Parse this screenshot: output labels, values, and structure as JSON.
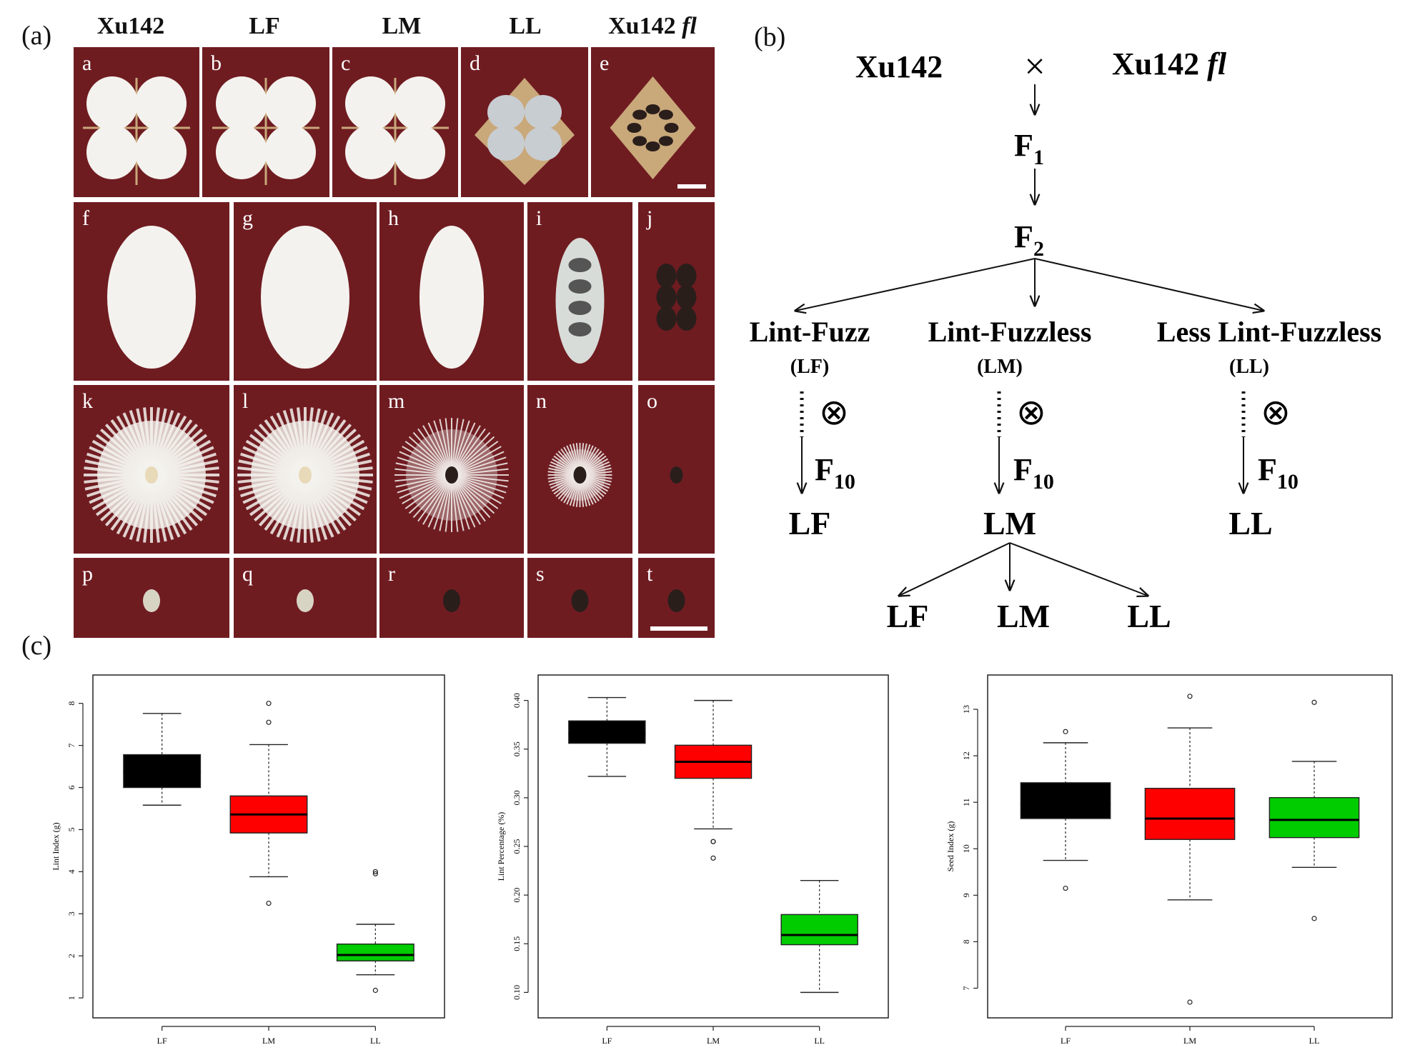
{
  "panel_a": {
    "label": "(a)",
    "col_headers": [
      "Xu142",
      "LF",
      "LM",
      "LL",
      "Xu142 fl"
    ],
    "col_headers_italic_suffix": "fl",
    "letters": [
      "a",
      "b",
      "c",
      "d",
      "e",
      "f",
      "g",
      "h",
      "i",
      "j",
      "k",
      "l",
      "m",
      "n",
      "o",
      "p",
      "q",
      "r",
      "s",
      "t"
    ],
    "colors": {
      "background": "#6f1c21",
      "fiber": "#f4f2ee",
      "seed": "#2a1e1b",
      "bract": "#c9a87a"
    }
  },
  "panel_b": {
    "label": "(b)",
    "parent_left": "Xu142",
    "cross_symbol": "×",
    "parent_right": "Xu142 ",
    "parent_right_italic": "fl",
    "f1": "F",
    "f1_sub": "1",
    "f2": "F",
    "f2_sub": "2",
    "classes": [
      {
        "name": "Lint-Fuzz",
        "abbr": "(LF)",
        "gen": "F",
        "gen_sub": "10",
        "result": "LF"
      },
      {
        "name": "Lint-Fuzzless",
        "abbr": "(LM)",
        "gen": "F",
        "gen_sub": "10",
        "result": "LM"
      },
      {
        "name": "Less Lint-Fuzzless",
        "abbr": "(LL)",
        "gen": "F",
        "gen_sub": "10",
        "result": "LL"
      }
    ],
    "self_symbol": "⊗",
    "segregation": [
      "LF",
      "LM",
      "LL"
    ]
  },
  "panel_c": {
    "label": "(c)"
  },
  "chart_data": [
    {
      "type": "box",
      "ylabel": "Lint Index (g)",
      "categories": [
        "LF",
        "LM",
        "LL"
      ],
      "ylim": [
        0.9,
        8.3
      ],
      "yticks": [
        1,
        2,
        3,
        4,
        5,
        6,
        7,
        8
      ],
      "colors": [
        "#000000",
        "#ff0000",
        "#00cc00"
      ],
      "boxes": [
        {
          "min": 5.58,
          "q1": 6.0,
          "median": 6.38,
          "q3": 6.78,
          "max": 7.76,
          "outliers": []
        },
        {
          "min": 3.88,
          "q1": 4.92,
          "median": 5.36,
          "q3": 5.8,
          "max": 7.02,
          "outliers": [
            3.25,
            7.55,
            8.0
          ]
        },
        {
          "min": 1.55,
          "q1": 1.88,
          "median": 2.02,
          "q3": 2.28,
          "max": 2.75,
          "outliers": [
            1.18,
            3.95,
            4.0
          ]
        }
      ]
    },
    {
      "type": "box",
      "ylabel": "Lint Percentage (%)",
      "categories": [
        "LF",
        "LM",
        "LL"
      ],
      "ylim": [
        0.09,
        0.41
      ],
      "yticks": [
        "0.10",
        "0.15",
        "0.20",
        "0.25",
        "0.30",
        "0.35",
        "0.40"
      ],
      "colors": [
        "#000000",
        "#ff0000",
        "#00cc00"
      ],
      "boxes": [
        {
          "min": 0.322,
          "q1": 0.356,
          "median": 0.366,
          "q3": 0.379,
          "max": 0.403,
          "outliers": []
        },
        {
          "min": 0.268,
          "q1": 0.32,
          "median": 0.337,
          "q3": 0.354,
          "max": 0.4,
          "outliers": [
            0.238,
            0.255,
            0.255
          ]
        },
        {
          "min": 0.1,
          "q1": 0.149,
          "median": 0.159,
          "q3": 0.18,
          "max": 0.215,
          "outliers": []
        }
      ]
    },
    {
      "type": "box",
      "ylabel": "Seed Index (g)",
      "categories": [
        "LF",
        "LM",
        "LL"
      ],
      "ylim": [
        6.7,
        13.4
      ],
      "yticks": [
        7,
        8,
        9,
        10,
        11,
        12,
        13
      ],
      "colors": [
        "#000000",
        "#ff0000",
        "#00cc00"
      ],
      "boxes": [
        {
          "min": 9.75,
          "q1": 10.65,
          "median": 10.95,
          "q3": 11.42,
          "max": 12.28,
          "outliers": [
            9.15,
            12.52
          ]
        },
        {
          "min": 8.9,
          "q1": 10.2,
          "median": 10.65,
          "q3": 11.3,
          "max": 12.6,
          "outliers": [
            6.7,
            13.28
          ]
        },
        {
          "min": 9.6,
          "q1": 10.24,
          "median": 10.62,
          "q3": 11.1,
          "max": 11.88,
          "outliers": [
            8.5,
            13.15
          ]
        }
      ]
    }
  ]
}
